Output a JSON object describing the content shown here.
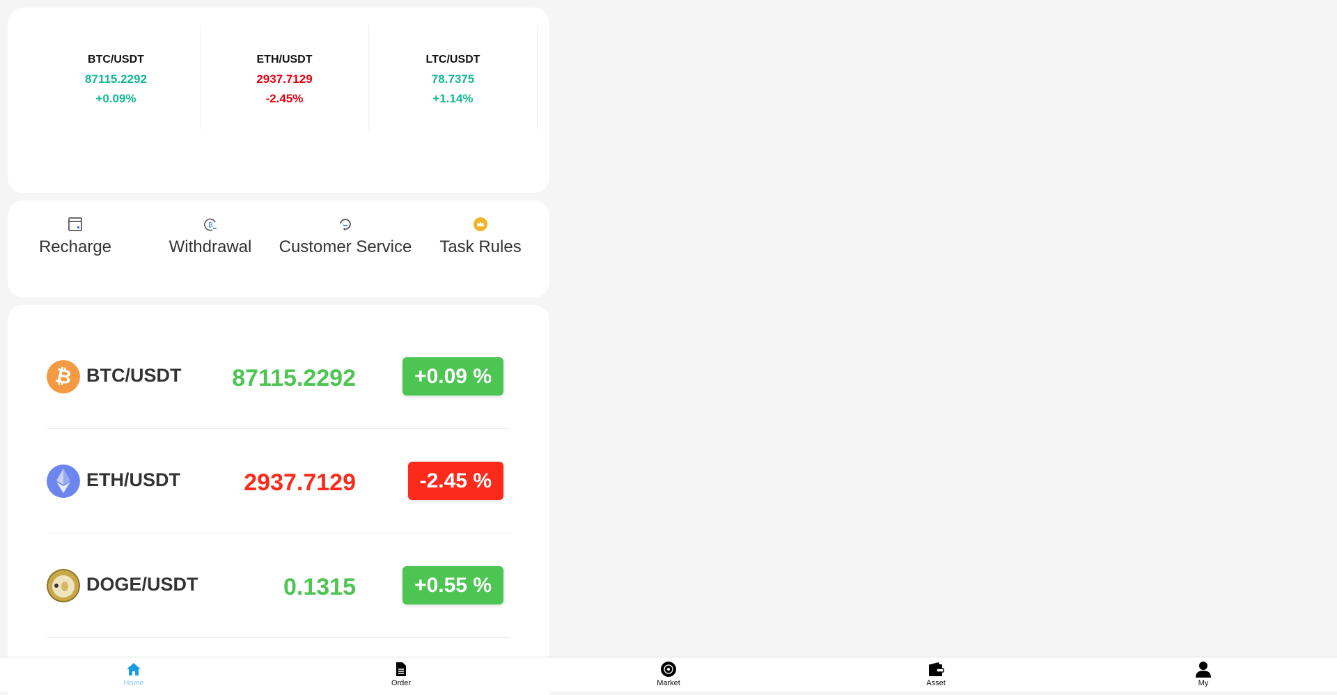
{
  "colors": {
    "up": "#14b892",
    "down": "#e60012",
    "badge_up": "#4cc552",
    "badge_down": "#fb2a1a",
    "home_active": "#1a9de0"
  },
  "tickers": [
    {
      "pair": "BTC/USDT",
      "price": "87115.2292",
      "change": "+0.09%",
      "dir": "up"
    },
    {
      "pair": "ETH/USDT",
      "price": "2937.7129",
      "change": "-2.45%",
      "dir": "down"
    },
    {
      "pair": "LTC/USDT",
      "price": "78.7375",
      "change": "+1.14%",
      "dir": "up"
    }
  ],
  "menu": [
    {
      "label": "Recharge",
      "icon": "wallet-icon"
    },
    {
      "label": "Withdrawal",
      "icon": "bitcoin-withdraw-icon"
    },
    {
      "label": "Customer Service",
      "icon": "headset-icon"
    },
    {
      "label": "Task Rules",
      "icon": "crown-icon"
    }
  ],
  "markets": [
    {
      "pair": "BTC/USDT",
      "price": "87115.2292",
      "change": "+0.09 %",
      "dir": "up",
      "icon": "bitcoin-icon"
    },
    {
      "pair": "ETH/USDT",
      "price": "2937.7129",
      "change": "-2.45 %",
      "dir": "down",
      "icon": "ethereum-icon"
    },
    {
      "pair": "DOGE/USDT",
      "price": "0.1315",
      "change": "+0.55 %",
      "dir": "up",
      "icon": "dogecoin-icon"
    }
  ],
  "nav": [
    {
      "label": "Home",
      "active": true
    },
    {
      "label": "Order"
    },
    {
      "label": "Market"
    },
    {
      "label": "Asset"
    },
    {
      "label": "My"
    }
  ]
}
